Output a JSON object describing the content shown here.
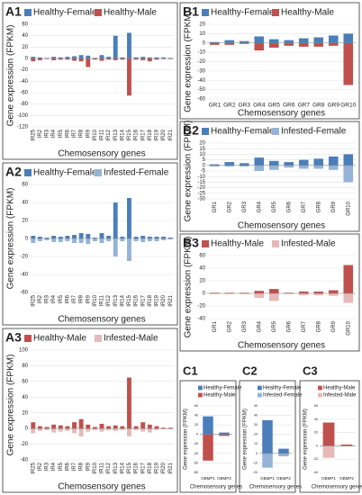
{
  "chart_data": [
    {
      "type": "bar",
      "title": "A1",
      "ylabel": "Gene expression (FPKM)",
      "xlabel": "Chemosensory genes",
      "categories": [
        "IR25",
        "IR2",
        "IR3",
        "IR4",
        "IR5",
        "IR6",
        "IR7",
        "IR8",
        "IR9",
        "IR10",
        "IR11",
        "IR12",
        "IR13",
        "IR14",
        "IR15",
        "IR16",
        "IR17",
        "IR18",
        "IR19",
        "IR20",
        "IR21"
      ],
      "series": [
        {
          "name": "Healthy-Female",
          "color": "#4a7ebb",
          "values": [
            3,
            2,
            1,
            3,
            2,
            3,
            4,
            6,
            5,
            1,
            6,
            3,
            40,
            2,
            45,
            2,
            3,
            2,
            2,
            2,
            1
          ]
        },
        {
          "name": "Healthy-Male",
          "color": "#c0504d",
          "values": [
            -5,
            -3,
            -1,
            -3,
            -2,
            -2,
            -4,
            -5,
            -15,
            -2,
            -4,
            -2,
            -3,
            -2,
            -65,
            -2,
            -3,
            -5,
            -2,
            -1,
            -1
          ]
        }
      ],
      "ylim": [
        -120,
        60
      ],
      "yticks": [
        60,
        40,
        20,
        0,
        -20,
        -40,
        -60,
        -80,
        -100,
        -120
      ],
      "grid": true
    },
    {
      "type": "bar",
      "title": "A2",
      "ylabel": "Gene expression (FPKM)",
      "xlabel": "Chemosensory genes",
      "categories": [
        "IR25",
        "IR2",
        "IR3",
        "IR4",
        "IR5",
        "IR6",
        "IR7",
        "IR8",
        "IR9",
        "IR10",
        "IR11",
        "IR12",
        "IR13",
        "IR14",
        "IR15",
        "IR16",
        "IR17",
        "IR18",
        "IR19",
        "IR20",
        "IR21"
      ],
      "series": [
        {
          "name": "Healthy-Female",
          "color": "#4a7ebb",
          "values": [
            3,
            2,
            1,
            3,
            2,
            3,
            4,
            6,
            5,
            1,
            6,
            3,
            40,
            2,
            45,
            2,
            3,
            2,
            2,
            2,
            1
          ]
        },
        {
          "name": "Infested-Female",
          "color": "#95b3d7",
          "values": [
            -5,
            -3,
            -2,
            -4,
            -4,
            -3,
            -5,
            -5,
            -6,
            -3,
            -5,
            -3,
            -20,
            -3,
            -25,
            -3,
            -4,
            -3,
            -3,
            -2,
            -1
          ]
        }
      ],
      "ylim": [
        -60,
        60
      ],
      "yticks": [
        60,
        40,
        20,
        0,
        -20,
        -40,
        -60
      ],
      "grid": true
    },
    {
      "type": "bar",
      "title": "A3",
      "ylabel": "Gene expression (FPKM)",
      "xlabel": "Chemosensory genes",
      "categories": [
        "IR25",
        "IR2",
        "IR3",
        "IR4",
        "IR5",
        "IR6",
        "IR7",
        "IR8",
        "IR9",
        "IR10",
        "IR11",
        "IR12",
        "IR13",
        "IR14",
        "IR15",
        "IR16",
        "IR17",
        "IR18",
        "IR19",
        "IR20",
        "IR21"
      ],
      "series": [
        {
          "name": "Healthy-Male",
          "color": "#c0504d",
          "values": [
            8,
            3,
            2,
            5,
            4,
            3,
            8,
            12,
            5,
            2,
            6,
            3,
            4,
            3,
            65,
            3,
            8,
            5,
            3,
            1,
            1
          ]
        },
        {
          "name": "Infested-Male",
          "color": "#e6b9b8",
          "values": [
            -6,
            -3,
            -2,
            -5,
            -4,
            -3,
            -6,
            -10,
            -4,
            -2,
            -4,
            -2,
            -3,
            -2,
            -10,
            -2,
            -4,
            -5,
            -2,
            -1,
            -1
          ]
        }
      ],
      "ylim": [
        -40,
        100
      ],
      "yticks": [
        100,
        80,
        60,
        40,
        20,
        0,
        -20,
        -40
      ],
      "grid": true
    },
    {
      "type": "bar",
      "title": "B1",
      "ylabel": "Gene expression (FPKM)",
      "xlabel": "Chemosensory genes",
      "categories": [
        "GR1",
        "GR2",
        "GR3",
        "GR4",
        "GR5",
        "GR6",
        "GR7",
        "GR8",
        "GR9",
        "GR10"
      ],
      "series": [
        {
          "name": "Healthy-Female",
          "color": "#4a7ebb",
          "values": [
            1,
            3,
            2,
            7,
            4,
            3,
            5,
            6,
            8,
            10
          ]
        },
        {
          "name": "Healthy-Male",
          "color": "#c0504d",
          "values": [
            -2,
            -2,
            -1,
            -8,
            -5,
            -3,
            -4,
            -4,
            -3,
            -45
          ]
        }
      ],
      "ylim": [
        -60,
        20
      ],
      "yticks": [
        20,
        10,
        0,
        -10,
        -20,
        -30,
        -40,
        -50,
        -60
      ],
      "grid": true
    },
    {
      "type": "bar",
      "title": "B2",
      "ylabel": "Gene expression (FPKM)",
      "xlabel": "Chemosensory genes",
      "categories": [
        "GR1",
        "GR2",
        "GR3",
        "GR4",
        "GR5",
        "GR6",
        "GR7",
        "GR8",
        "GR9",
        "GR10"
      ],
      "series": [
        {
          "name": "Healthy-Female",
          "color": "#4a7ebb",
          "values": [
            1,
            3,
            2,
            7,
            4,
            3,
            5,
            6,
            8,
            10
          ]
        },
        {
          "name": "Infested-Female",
          "color": "#95b3d7",
          "values": [
            -1,
            -1,
            -1,
            -5,
            -4,
            -2,
            -3,
            -3,
            -4,
            -15
          ]
        }
      ],
      "ylim": [
        -30,
        20
      ],
      "yticks": [
        20,
        15,
        10,
        5,
        0,
        -5,
        -10,
        -15,
        -20,
        -25,
        -30
      ],
      "grid": true
    },
    {
      "type": "bar",
      "title": "B3",
      "ylabel": "Gene expression (FPKM)",
      "xlabel": "Chemosensory genes",
      "categories": [
        "GR1",
        "GR2",
        "GR3",
        "GR4",
        "GR5",
        "GR6",
        "GR7",
        "GR8",
        "GR9",
        "GR10"
      ],
      "series": [
        {
          "name": "Healthy-Male",
          "color": "#c0504d",
          "values": [
            1,
            1,
            1,
            4,
            7,
            1,
            3,
            3,
            5,
            45
          ]
        },
        {
          "name": "Infested-Male",
          "color": "#e6b9b8",
          "values": [
            -1,
            -1,
            -1,
            -7,
            -12,
            -1,
            -3,
            -3,
            -4,
            -15
          ]
        }
      ],
      "ylim": [
        -40,
        60
      ],
      "yticks": [
        60,
        40,
        20,
        0,
        -20,
        -40
      ],
      "grid": true
    },
    {
      "type": "bar",
      "title": "C1",
      "ylabel": "Gene expression (FPKM)",
      "xlabel": "Chemosensory genes",
      "categories": [
        "OBMP1",
        "OBMP2"
      ],
      "series": [
        {
          "name": "Healthy-Female",
          "color": "#4a7ebb",
          "values": [
            38,
            4
          ]
        },
        {
          "name": "Healthy-Male",
          "color": "#c0504d",
          "values": [
            -55,
            -3
          ]
        }
      ],
      "ylim": [
        -80,
        60
      ],
      "yticks": [
        60,
        40,
        20,
        0,
        -20,
        -40,
        -60,
        -80
      ],
      "grid": true
    },
    {
      "type": "bar",
      "title": "C2",
      "ylabel": "Gene expression (FPKM)",
      "xlabel": "Chemosensory genes",
      "categories": [
        "OBMP1",
        "OBMP2"
      ],
      "series": [
        {
          "name": "Healthy-Female",
          "color": "#4a7ebb",
          "values": [
            35,
            5
          ]
        },
        {
          "name": "Infested-Female",
          "color": "#95b3d7",
          "values": [
            -15,
            -3
          ]
        }
      ],
      "ylim": [
        -20,
        50
      ],
      "yticks": [
        50,
        40,
        30,
        20,
        10,
        0,
        -10,
        -20
      ],
      "grid": true
    },
    {
      "type": "bar",
      "title": "C3",
      "ylabel": "Gene expression (FPKM)",
      "xlabel": "Chemosensory genes",
      "categories": [
        "OBMP1",
        "OBMP2"
      ],
      "series": [
        {
          "name": "Healthy-Male",
          "color": "#c0504d",
          "values": [
            35,
            2
          ]
        },
        {
          "name": "Infested-Male",
          "color": "#e6b9b8",
          "values": [
            -18,
            -1
          ]
        }
      ],
      "ylim": [
        -40,
        60
      ],
      "yticks": [
        60,
        40,
        20,
        0,
        -20,
        -40
      ],
      "grid": true
    }
  ]
}
